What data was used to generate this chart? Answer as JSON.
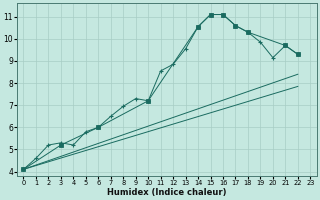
{
  "title": "",
  "xlabel": "Humidex (Indice chaleur)",
  "ylabel": "",
  "xlim": [
    -0.5,
    23.5
  ],
  "ylim": [
    3.8,
    11.6
  ],
  "xticks": [
    0,
    1,
    2,
    3,
    4,
    5,
    6,
    7,
    8,
    9,
    10,
    11,
    12,
    13,
    14,
    15,
    16,
    17,
    18,
    19,
    20,
    21,
    22,
    23
  ],
  "yticks": [
    4,
    5,
    6,
    7,
    8,
    9,
    10,
    11
  ],
  "background_color": "#c5e8e0",
  "grid_color": "#a8cdc5",
  "line_color": "#1a6b60",
  "curve_x": [
    0,
    1,
    2,
    3,
    4,
    5,
    6,
    7,
    8,
    9,
    10,
    11,
    12,
    13,
    14,
    15,
    16,
    17,
    18,
    19,
    20,
    21,
    22
  ],
  "curve_y": [
    4.1,
    4.6,
    5.2,
    5.3,
    5.2,
    5.8,
    6.0,
    6.5,
    6.95,
    7.3,
    7.2,
    8.55,
    8.85,
    9.55,
    10.55,
    11.1,
    11.1,
    10.6,
    10.3,
    9.85,
    9.15,
    9.7,
    9.3
  ],
  "angular_x": [
    0,
    3,
    6,
    10,
    14,
    15,
    16,
    17,
    18,
    21,
    22
  ],
  "angular_y": [
    4.1,
    5.2,
    6.0,
    7.2,
    10.55,
    11.1,
    11.1,
    10.6,
    10.3,
    9.7,
    9.3
  ],
  "line1_x": [
    0,
    22
  ],
  "line1_y": [
    4.1,
    8.4
  ],
  "line2_x": [
    0,
    22
  ],
  "line2_y": [
    4.1,
    7.85
  ]
}
